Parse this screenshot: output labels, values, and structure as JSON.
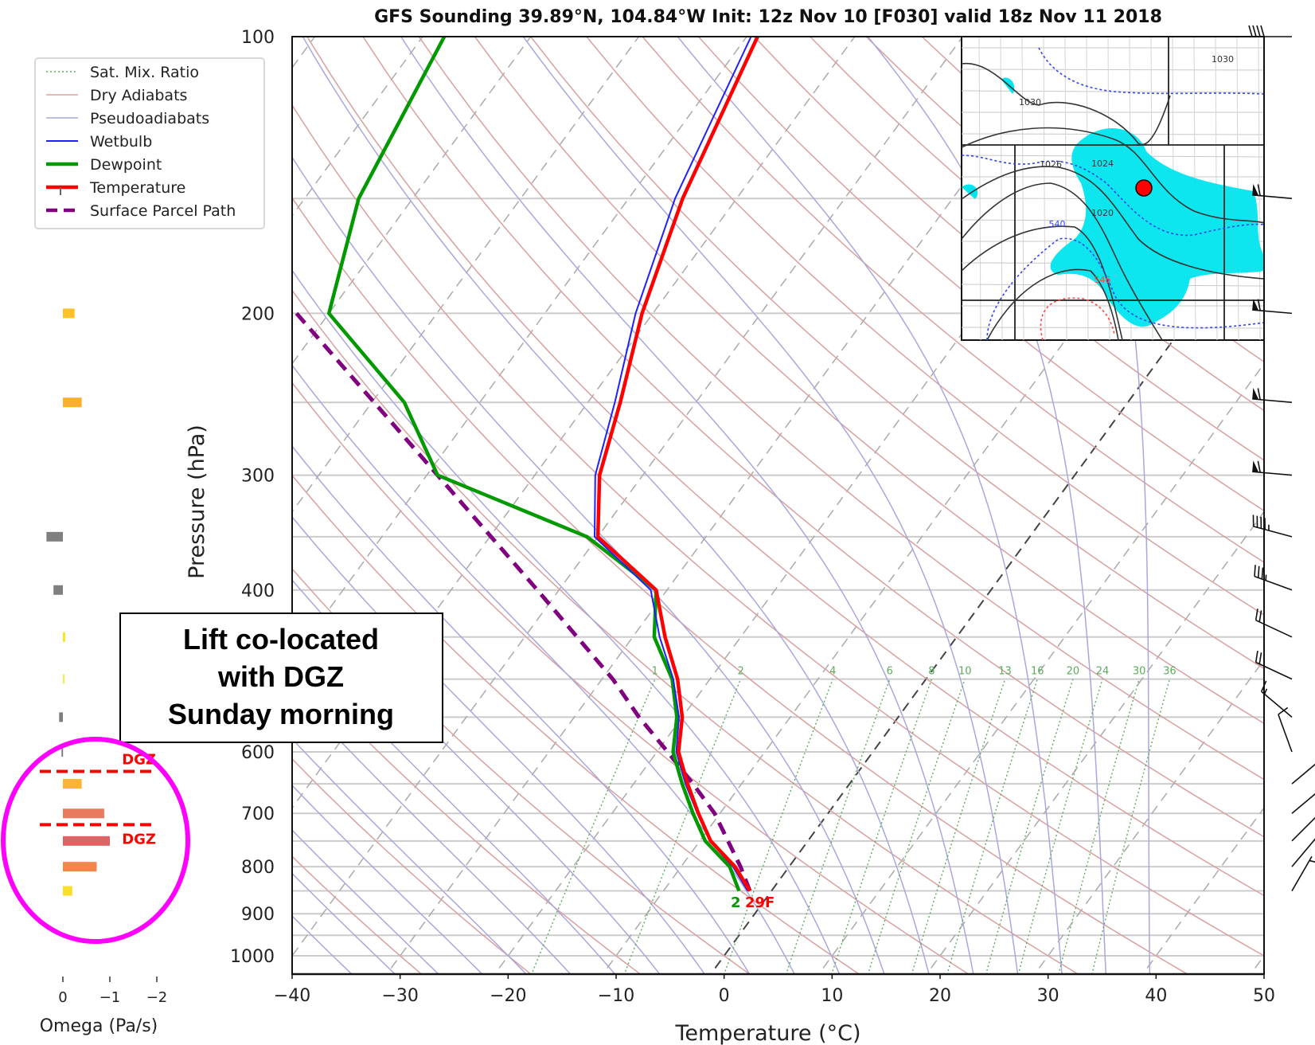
{
  "chart_data": {
    "type": "line",
    "subtype": "skew-T log-P sounding",
    "title": "GFS Sounding 39.89°N, 104.84°W Init: 12z Nov 10 [F030] valid 18z Nov 11 2018",
    "xlabel": "Temperature (°C)",
    "ylabel": "Pressure (hPa)",
    "xlim": [
      -40,
      50
    ],
    "ylim": [
      1050,
      100
    ],
    "x_ticks": [
      "−40",
      "−30",
      "−20",
      "−10",
      "0",
      "10",
      "20",
      "30",
      "40",
      "50"
    ],
    "x_tick_values": [
      -40,
      -30,
      -20,
      -10,
      0,
      10,
      20,
      30,
      40,
      50
    ],
    "y_ticks": [
      "100",
      "200",
      "300",
      "400",
      "600",
      "700",
      "800",
      "900",
      "1000"
    ],
    "y_tick_values": [
      100,
      200,
      300,
      400,
      600,
      700,
      800,
      900,
      1000
    ],
    "pressure_gridlines": [
      100,
      150,
      200,
      250,
      300,
      350,
      400,
      450,
      500,
      550,
      600,
      650,
      700,
      750,
      800,
      850,
      900,
      950,
      1000
    ],
    "grid": true,
    "legend_position": "top-left",
    "legend": [
      {
        "label": "Sat. Mix. Ratio",
        "color": "#5cab5c",
        "style": "dotted"
      },
      {
        "label": "Dry Adiabats",
        "color": "#d9a0a0",
        "style": "solid"
      },
      {
        "label": "Pseudoadiabats",
        "color": "#a8a8dc",
        "style": "solid"
      },
      {
        "label": "Wetbulb",
        "color": "#2020ff",
        "style": "solid"
      },
      {
        "label": "Dewpoint",
        "color": "#009900",
        "style": "solid"
      },
      {
        "label": "Temperature",
        "color": "#ff0000",
        "style": "solid"
      },
      {
        "label": "Surface Parcel Path",
        "color": "#800080",
        "style": "dashed"
      }
    ],
    "mixing_ratio_labels": [
      "1",
      "2",
      "4",
      "6",
      "8",
      "10",
      "13",
      "16",
      "20",
      "24",
      "30",
      "36"
    ],
    "mixing_ratio_values": [
      1,
      2,
      4,
      6,
      8,
      10,
      13,
      16,
      20,
      24,
      30,
      36
    ],
    "series": [
      {
        "name": "Temperature",
        "pressure": [
          850,
          800,
          750,
          700,
          650,
          600,
          550,
          500,
          450,
          400,
          350,
          300,
          250,
          200,
          150,
          100
        ],
        "values": [
          -2,
          -5,
          -9,
          -12,
          -15,
          -18,
          -20,
          -23,
          -27,
          -31,
          -40,
          -44,
          -47,
          -51,
          -55,
          -59
        ]
      },
      {
        "name": "Wetbulb",
        "pressure": [
          850,
          800,
          750,
          700,
          650,
          600,
          550,
          500,
          450,
          400,
          350,
          300,
          250,
          200,
          150,
          100
        ],
        "values": [
          -2.2,
          -5.2,
          -9.1,
          -12.1,
          -15.2,
          -18.2,
          -20.3,
          -23.4,
          -27.5,
          -31.5,
          -40.3,
          -44.4,
          -47.5,
          -51.6,
          -55.7,
          -59.6
        ]
      },
      {
        "name": "Dewpoint",
        "pressure": [
          850,
          800,
          750,
          700,
          650,
          600,
          550,
          500,
          450,
          400,
          350,
          300,
          250,
          200,
          150,
          100
        ],
        "values": [
          -3,
          -5.5,
          -9.5,
          -12.5,
          -15.5,
          -18.5,
          -20.5,
          -23.5,
          -28,
          -31,
          -41,
          -59,
          -67,
          -80,
          -85,
          -88
        ]
      },
      {
        "name": "Surface Parcel Path",
        "pressure": [
          850,
          800,
          700,
          650,
          600,
          550,
          500,
          400,
          300,
          200
        ],
        "values": [
          -2,
          -4.5,
          -10.5,
          -14.5,
          -19,
          -24,
          -29,
          -42,
          -59,
          -83
        ]
      }
    ],
    "surface_labels": {
      "dewpoint": "2",
      "temperature": "29F"
    },
    "isotherm_highlights": [
      -25,
      -15,
      0
    ],
    "omega_panel": {
      "xlabel": "Omega (Pa/s)",
      "x_ticks": [
        "0",
        "−1",
        "−2"
      ],
      "x_tick_values": [
        0,
        -1,
        -2
      ],
      "xlim": [
        0.5,
        -2.2
      ],
      "bars": [
        {
          "pressure": 200,
          "value": -0.25,
          "color": "#fdc12a"
        },
        {
          "pressure": 250,
          "value": -0.4,
          "color": "#fcae2e"
        },
        {
          "pressure": 350,
          "value": 0.35,
          "color": "#7f7f7f"
        },
        {
          "pressure": 400,
          "value": 0.2,
          "color": "#7f7f7f"
        },
        {
          "pressure": 450,
          "value": -0.05,
          "color": "#f5e61e"
        },
        {
          "pressure": 500,
          "value": -0.02,
          "color": "#f5ec4a"
        },
        {
          "pressure": 550,
          "value": 0.08,
          "color": "#7f7f7f"
        },
        {
          "pressure": 600,
          "value": 0.03,
          "color": "#7f7f7f"
        },
        {
          "pressure": 650,
          "value": -0.4,
          "color": "#fbb332"
        },
        {
          "pressure": 700,
          "value": -0.88,
          "color": "#ea7a5e"
        },
        {
          "pressure": 750,
          "value": -1.0,
          "color": "#dc6464"
        },
        {
          "pressure": 800,
          "value": -0.72,
          "color": "#f3864a"
        },
        {
          "pressure": 850,
          "value": -0.2,
          "color": "#f9de2a"
        }
      ],
      "dgz_label": "DGZ",
      "dgz_bounds_hpa": [
        630,
        720
      ]
    },
    "wind_barbs": [
      {
        "pressure": 100,
        "speed_kt": 40,
        "direction_deg": 270
      },
      {
        "pressure": 150,
        "speed_kt": 60,
        "direction_deg": 275
      },
      {
        "pressure": 200,
        "speed_kt": 60,
        "direction_deg": 275
      },
      {
        "pressure": 250,
        "speed_kt": 60,
        "direction_deg": 275
      },
      {
        "pressure": 300,
        "speed_kt": 60,
        "direction_deg": 275
      },
      {
        "pressure": 350,
        "speed_kt": 45,
        "direction_deg": 285
      },
      {
        "pressure": 400,
        "speed_kt": 35,
        "direction_deg": 290
      },
      {
        "pressure": 450,
        "speed_kt": 20,
        "direction_deg": 295
      },
      {
        "pressure": 500,
        "speed_kt": 20,
        "direction_deg": 295
      },
      {
        "pressure": 550,
        "speed_kt": 15,
        "direction_deg": 310
      },
      {
        "pressure": 600,
        "speed_kt": 10,
        "direction_deg": 340
      },
      {
        "pressure": 650,
        "speed_kt": 5,
        "direction_deg": 50
      },
      {
        "pressure": 700,
        "speed_kt": 5,
        "direction_deg": 50
      },
      {
        "pressure": 750,
        "speed_kt": 5,
        "direction_deg": 45
      },
      {
        "pressure": 800,
        "speed_kt": 5,
        "direction_deg": 40
      },
      {
        "pressure": 850,
        "speed_kt": 5,
        "direction_deg": 30
      }
    ]
  },
  "inset_map": {
    "contour_labels": [
      "1030",
      "1030",
      "1026",
      "1024",
      "1020",
      "540",
      "546"
    ],
    "station_marker_color": "#ff0000",
    "precip_color": "#00e5ee"
  },
  "annotation": {
    "lines": [
      "Lift co-located",
      "with DGZ",
      "Sunday morning"
    ]
  },
  "highlight_circle_color": "#ff00ff",
  "colors": {
    "temperature": "#ff0000",
    "dewpoint": "#009900",
    "wetbulb": "#2020ff",
    "parcel": "#800080",
    "dry_adiabat": "#d9a0a0",
    "moist_adiabat": "#a8a8dc",
    "mixing_ratio": "#5cab5c",
    "isotherm": "#aaaaaa",
    "isobar": "#cccccc"
  }
}
